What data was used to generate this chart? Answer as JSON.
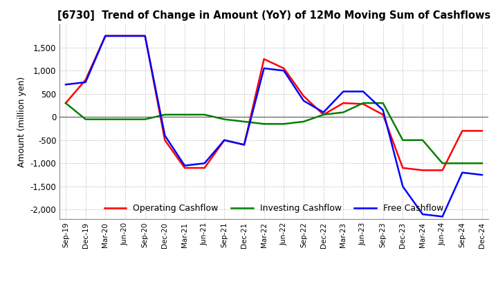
{
  "title": "[6730]  Trend of Change in Amount (YoY) of 12Mo Moving Sum of Cashflows",
  "ylabel": "Amount (million yen)",
  "x_labels": [
    "Sep-19",
    "Dec-19",
    "Mar-20",
    "Jun-20",
    "Sep-20",
    "Dec-20",
    "Mar-21",
    "Jun-21",
    "Sep-21",
    "Dec-21",
    "Mar-22",
    "Jun-22",
    "Sep-22",
    "Dec-22",
    "Mar-23",
    "Jun-23",
    "Sep-23",
    "Dec-23",
    "Mar-24",
    "Jun-24",
    "Sep-24",
    "Dec-24"
  ],
  "operating": [
    300,
    800,
    1750,
    1750,
    1750,
    -500,
    -1100,
    -1100,
    -500,
    -600,
    1250,
    1050,
    450,
    50,
    300,
    280,
    50,
    -1100,
    -1150,
    -1150,
    -300,
    -300
  ],
  "investing": [
    300,
    -50,
    -50,
    -50,
    -50,
    50,
    50,
    50,
    -50,
    -100,
    -150,
    -150,
    -100,
    50,
    100,
    300,
    300,
    -500,
    -500,
    -1000,
    -1000,
    -1000
  ],
  "free": [
    700,
    750,
    1750,
    1750,
    1750,
    -400,
    -1050,
    -1000,
    -500,
    -600,
    1050,
    1000,
    350,
    100,
    550,
    550,
    150,
    -1500,
    -2100,
    -2150,
    -1200,
    -1250
  ],
  "colors": {
    "operating": "#ff0000",
    "investing": "#008000",
    "free": "#0000ff"
  },
  "ylim": [
    -2200,
    2000
  ],
  "yticks": [
    -2000,
    -1500,
    -1000,
    -500,
    0,
    500,
    1000,
    1500
  ],
  "background": "#ffffff",
  "grid_color": "#b0b0b0",
  "legend_labels": [
    "Operating Cashflow",
    "Investing Cashflow",
    "Free Cashflow"
  ]
}
